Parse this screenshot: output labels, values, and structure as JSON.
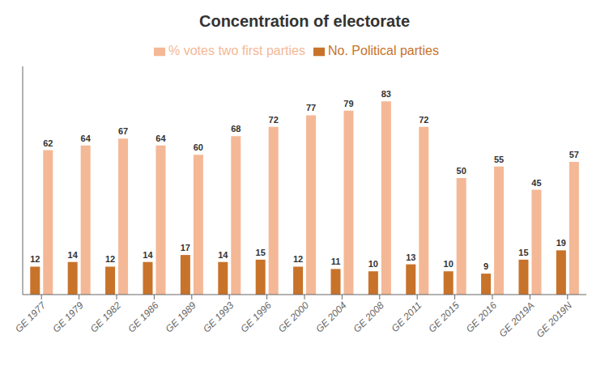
{
  "chart_data": {
    "type": "bar",
    "title": "Concentration of electorate",
    "categories": [
      "GE 1977",
      "GE 1979",
      "GE 1982",
      "GE 1986",
      "GE 1989",
      "GE 1993",
      "GE 1996",
      "GE 2000",
      "GE 2004",
      "GE 2008",
      "GE 2011",
      "GE 2015",
      "GE 2016",
      "GE 2019A",
      "GE 2019N"
    ],
    "series": [
      {
        "name": "No. Political parties",
        "color": "#c8732a",
        "values": [
          12,
          14,
          12,
          14,
          17,
          14,
          15,
          12,
          11,
          10,
          13,
          10,
          9,
          15,
          19
        ]
      },
      {
        "name": "% votes two first parties",
        "color": "#f4b896",
        "values": [
          62,
          64,
          67,
          64,
          60,
          68,
          72,
          77,
          79,
          83,
          72,
          50,
          55,
          45,
          57
        ]
      }
    ],
    "ylim": [
      0,
      98
    ],
    "grid": false,
    "legend": "top",
    "data_labels": true,
    "tick_labels": "x"
  }
}
